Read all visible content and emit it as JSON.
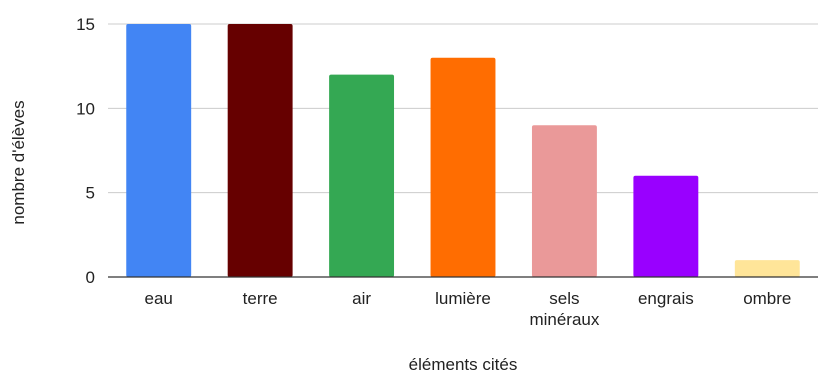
{
  "chart_data": {
    "type": "bar",
    "title": "",
    "xlabel": "éléments cités",
    "ylabel": "nombre d'élèves",
    "ylim": [
      0,
      15
    ],
    "yticks": [
      0,
      5,
      10,
      15
    ],
    "grid": true,
    "categories": [
      [
        "eau"
      ],
      [
        "terre"
      ],
      [
        "air"
      ],
      [
        "lumière"
      ],
      [
        "sels",
        "minéraux"
      ],
      [
        "engrais"
      ],
      [
        "ombre"
      ]
    ],
    "values": [
      15,
      15,
      12,
      13,
      9,
      6,
      1
    ],
    "colors": [
      "#4285f4",
      "#660000",
      "#34a853",
      "#ff6d01",
      "#ea9999",
      "#9900ff",
      "#ffe599"
    ]
  }
}
